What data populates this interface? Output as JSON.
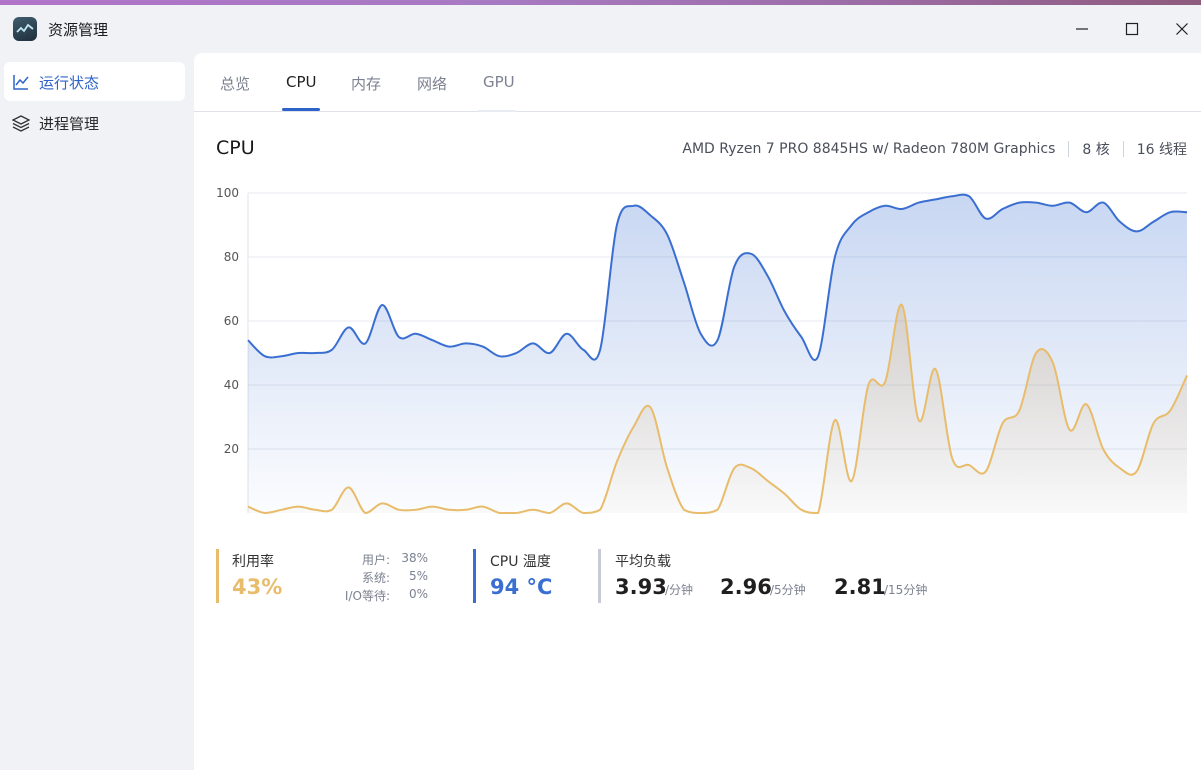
{
  "window": {
    "title": "资源管理"
  },
  "sidebar": {
    "items": [
      {
        "label": "运行状态",
        "icon": "chart-line-icon",
        "active": true
      },
      {
        "label": "进程管理",
        "icon": "layers-icon",
        "active": false
      }
    ]
  },
  "tabs": [
    {
      "label": "总览",
      "active": false
    },
    {
      "label": "CPU",
      "active": true
    },
    {
      "label": "内存",
      "active": false
    },
    {
      "label": "网络",
      "active": false
    },
    {
      "label": "GPU",
      "active": false
    }
  ],
  "cpu": {
    "title": "CPU",
    "model": "AMD Ryzen 7 PRO 8845HS w/ Radeon 780M Graphics",
    "cores": "8 核",
    "threads": "16 线程"
  },
  "colors": {
    "accent": "#2e63c9",
    "utilization": "#e8bc6a",
    "temperature": "#3a6fd1",
    "load": "#c7ccd6"
  },
  "chart_data": {
    "type": "line",
    "ylim": [
      0,
      100
    ],
    "y_ticks": [
      "20",
      "40",
      "60",
      "80",
      "100"
    ],
    "grid": true,
    "series": [
      {
        "color": "#3a6fd1",
        "values": [
          54,
          49,
          49,
          50,
          50,
          51,
          58,
          53,
          65,
          55,
          56,
          54,
          52,
          53,
          52,
          49,
          50,
          53,
          50,
          56,
          51,
          51,
          90,
          96,
          93,
          87,
          72,
          56,
          54,
          77,
          81,
          74,
          63,
          55,
          49,
          80,
          90,
          94,
          96,
          95,
          97,
          98,
          99,
          99,
          92,
          95,
          97,
          97,
          96,
          97,
          94,
          97,
          91,
          88,
          91,
          94,
          94
        ]
      },
      {
        "color": "#e8bc6a",
        "values": [
          2,
          0,
          1,
          2,
          1,
          1,
          8,
          0,
          3,
          1,
          1,
          2,
          1,
          1,
          2,
          0,
          0,
          1,
          0,
          3,
          0,
          1,
          16,
          27,
          33,
          14,
          1,
          0,
          1,
          14,
          14,
          10,
          6,
          1,
          0,
          29,
          10,
          40,
          41,
          65,
          29,
          45,
          17,
          15,
          13,
          28,
          32,
          50,
          47,
          26,
          34,
          20,
          14,
          13,
          28,
          32,
          43
        ]
      }
    ]
  },
  "stats": {
    "utilization": {
      "label": "利用率",
      "value": "43%",
      "user_label": "用户:",
      "user_value": "38%",
      "system_label": "系统:",
      "system_value": "5%",
      "io_label": "I/O等待:",
      "io_value": "0%"
    },
    "temperature": {
      "label": "CPU 温度",
      "value": "94 °C"
    },
    "load": {
      "label": "平均负载",
      "one": "3.93",
      "one_unit": "/分钟",
      "five": "2.96",
      "five_unit": "/5分钟",
      "fifteen": "2.81",
      "fifteen_unit": "/15分钟"
    }
  }
}
